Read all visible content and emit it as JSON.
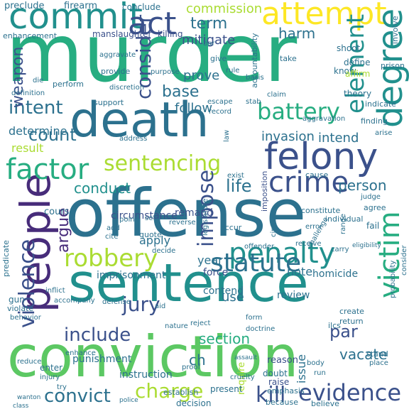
{
  "palette": {
    "background": "#ffffff",
    "colors": [
      "#440154",
      "#472c7a",
      "#3b518b",
      "#2c718e",
      "#21908d",
      "#27ad81",
      "#5cc863",
      "#aadc32",
      "#fde725"
    ]
  },
  "words": [
    {
      "text": "murder",
      "color": "#27ad81"
    },
    {
      "text": "offense",
      "color": "#2c718e"
    },
    {
      "text": "conviction",
      "color": "#5cc863"
    },
    {
      "text": "sentence",
      "color": "#21908d"
    },
    {
      "text": "death",
      "color": "#2c718e"
    },
    {
      "text": "felony",
      "color": "#3b518b"
    },
    {
      "text": "people",
      "color": "#472c7a"
    },
    {
      "text": "commit",
      "color": "#21908d"
    },
    {
      "text": "attempt",
      "color": "#fde725"
    },
    {
      "text": "act",
      "color": "#3b518b"
    },
    {
      "text": "degree",
      "color": "#21908d"
    },
    {
      "text": "penalty",
      "color": "#21908d"
    },
    {
      "text": "crime",
      "color": "#3b518b"
    },
    {
      "text": "battery",
      "color": "#27ad81"
    },
    {
      "text": "factor",
      "color": "#27ad81"
    },
    {
      "text": "sentencing",
      "color": "#aadc32"
    },
    {
      "text": "robbery",
      "color": "#aadc32"
    },
    {
      "text": "victim",
      "color": "#27ad81"
    },
    {
      "text": "statute",
      "color": "#2c718e"
    },
    {
      "text": "impose",
      "color": "#3b518b"
    },
    {
      "text": "element",
      "color": "#21908d"
    },
    {
      "text": "consider",
      "color": "#3b518b"
    },
    {
      "text": "violence",
      "color": "#3b518b"
    },
    {
      "text": "evidence",
      "color": "#3b518b"
    },
    {
      "text": "kill",
      "color": "#3b518b"
    },
    {
      "text": "charge",
      "color": "#aadc32"
    },
    {
      "text": "convict",
      "color": "#2c718e"
    },
    {
      "text": "jury",
      "color": "#3b518b"
    },
    {
      "text": "include",
      "color": "#3b518b"
    },
    {
      "text": "intent",
      "color": "#2c718e"
    },
    {
      "text": "count",
      "color": "#2c718e"
    },
    {
      "text": "term",
      "color": "#2c718e"
    },
    {
      "text": "harm",
      "color": "#2c718e"
    },
    {
      "text": "base",
      "color": "#2c718e"
    },
    {
      "text": "life",
      "color": "#2c718e"
    },
    {
      "text": "par",
      "color": "#3b518b"
    },
    {
      "text": "conduct",
      "color": "#21908d"
    },
    {
      "text": "argue",
      "color": "#472c7a"
    },
    {
      "text": "person",
      "color": "#2c718e"
    },
    {
      "text": "weapon",
      "color": "#3b518b"
    },
    {
      "text": "section",
      "color": "#27ad81"
    },
    {
      "text": "vacate",
      "color": "#2c718e"
    },
    {
      "text": "commission",
      "color": "#aadc32"
    },
    {
      "text": "mitigate",
      "color": "#3b518b"
    },
    {
      "text": "prove",
      "color": "#2c718e"
    },
    {
      "text": "follow",
      "color": "#2c718e"
    },
    {
      "text": "invasion",
      "color": "#2c718e"
    },
    {
      "text": "intend",
      "color": "#2c718e"
    },
    {
      "text": "determine",
      "color": "#2c718e"
    },
    {
      "text": "result",
      "color": "#aadc32"
    },
    {
      "text": "apply",
      "color": "#2c718e"
    },
    {
      "text": "use",
      "color": "#2c718e"
    },
    {
      "text": "year",
      "color": "#2c718e"
    },
    {
      "text": "note",
      "color": "#2c718e"
    },
    {
      "text": "issue",
      "color": "#2c718e"
    },
    {
      "text": "punishment",
      "color": "#2c718e"
    },
    {
      "text": "instruction",
      "color": "#2c718e"
    },
    {
      "text": "circumstance",
      "color": "#3b518b"
    },
    {
      "text": "imprisonment",
      "color": "#2c718e"
    },
    {
      "text": "homicide",
      "color": "#2c718e"
    },
    {
      "text": "review",
      "color": "#2c718e"
    },
    {
      "text": "contend",
      "color": "#2c718e"
    },
    {
      "text": "force",
      "color": "#3b518b"
    },
    {
      "text": "remand",
      "color": "#3b518b"
    },
    {
      "text": "course",
      "color": "#2c718e"
    },
    {
      "text": "firearm",
      "color": "#2c718e"
    },
    {
      "text": "preclude",
      "color": "#2c718e"
    },
    {
      "text": "conclude",
      "color": "#2c718e"
    },
    {
      "text": "manslaughter",
      "color": "#3b518b"
    },
    {
      "text": "killing",
      "color": "#3b518b"
    },
    {
      "text": "enhancement",
      "color": "#2c718e"
    },
    {
      "text": "give",
      "color": "#2c718e"
    },
    {
      "text": "accountability",
      "color": "#2c718e"
    },
    {
      "text": "know",
      "color": "#2c718e"
    },
    {
      "text": "shoot",
      "color": "#2c718e"
    },
    {
      "text": "take",
      "color": "#2c718e"
    },
    {
      "text": "define",
      "color": "#2c718e"
    },
    {
      "text": "affirm",
      "color": "#aadc32"
    },
    {
      "text": "theory",
      "color": "#2c718e"
    },
    {
      "text": "gun",
      "color": "#2c718e"
    },
    {
      "text": "reason",
      "color": "#3b518b"
    },
    {
      "text": "require",
      "color": "#aadc32"
    },
    {
      "text": "doubt",
      "color": "#2c718e"
    },
    {
      "text": "raise",
      "color": "#3b518b"
    },
    {
      "text": "emphasis",
      "color": "#2c718e"
    },
    {
      "text": "decision",
      "color": "#2c718e"
    },
    {
      "text": "present",
      "color": "#2c718e"
    },
    {
      "text": "establish",
      "color": "#2c718e"
    },
    {
      "text": "because",
      "color": "#2c718e"
    },
    {
      "text": "believe",
      "color": "#2c718e"
    },
    {
      "text": "enter",
      "color": "#2c718e"
    },
    {
      "text": "injury",
      "color": "#2c718e"
    },
    {
      "text": "reduce",
      "color": "#2c718e"
    },
    {
      "text": "create",
      "color": "#2c718e"
    },
    {
      "text": "return",
      "color": "#2c718e"
    },
    {
      "text": "ilcs",
      "color": "#2c718e"
    },
    {
      "text": "stand",
      "color": "#2c718e"
    },
    {
      "text": "constitute",
      "color": "#2c718e"
    },
    {
      "text": "individual",
      "color": "#2c718e"
    },
    {
      "text": "agree",
      "color": "#2c718e"
    },
    {
      "text": "judge",
      "color": "#2c718e"
    },
    {
      "text": "exist",
      "color": "#2c718e"
    },
    {
      "text": "cause",
      "color": "#2c718e"
    },
    {
      "text": "occur",
      "color": "#2c718e"
    },
    {
      "text": "reverse",
      "color": "#2c718e"
    },
    {
      "text": "point",
      "color": "#2c718e"
    },
    {
      "text": "support",
      "color": "#2c718e"
    },
    {
      "text": "provide",
      "color": "#2c718e"
    },
    {
      "text": "aggravate",
      "color": "#2c718e"
    },
    {
      "text": "perform",
      "color": "#2c718e"
    },
    {
      "text": "definition",
      "color": "#2c718e"
    },
    {
      "text": "purpose",
      "color": "#2c718e"
    },
    {
      "text": "escape",
      "color": "#2c718e"
    },
    {
      "text": "record",
      "color": "#2c718e"
    },
    {
      "text": "stab",
      "color": "#2c718e"
    },
    {
      "text": "rule",
      "color": "#2c718e"
    },
    {
      "text": "basis",
      "color": "#2c718e"
    },
    {
      "text": "claim",
      "color": "#2c718e"
    },
    {
      "text": "aggravation",
      "color": "#2c718e"
    },
    {
      "text": "finding",
      "color": "#2c718e"
    },
    {
      "text": "prison",
      "color": "#2c718e"
    },
    {
      "text": "involve",
      "color": "#2c718e"
    },
    {
      "text": "indicate",
      "color": "#2c718e"
    },
    {
      "text": "arise",
      "color": "#2c718e"
    },
    {
      "text": "predicate",
      "color": "#2c718e"
    },
    {
      "text": "violate",
      "color": "#2c718e"
    },
    {
      "text": "inflict",
      "color": "#2c718e"
    },
    {
      "text": "accompany",
      "color": "#2c718e"
    },
    {
      "text": "address",
      "color": "#2c718e"
    },
    {
      "text": "quote",
      "color": "#2c718e"
    },
    {
      "text": "add",
      "color": "#2c718e"
    },
    {
      "text": "cite",
      "color": "#2c718e"
    },
    {
      "text": "set",
      "color": "#2c718e"
    },
    {
      "text": "form",
      "color": "#2c718e"
    },
    {
      "text": "aid",
      "color": "#2c718e"
    },
    {
      "text": "defense",
      "color": "#2c718e"
    },
    {
      "text": "nature",
      "color": "#2c718e"
    },
    {
      "text": "doctrine",
      "color": "#2c718e"
    },
    {
      "text": "receive",
      "color": "#2c718e"
    },
    {
      "text": "offender",
      "color": "#2c718e"
    },
    {
      "text": "circuit",
      "color": "#2c718e"
    },
    {
      "text": "error",
      "color": "#2c718e"
    },
    {
      "text": "fail",
      "color": "#2c718e"
    },
    {
      "text": "challenge",
      "color": "#2c718e"
    },
    {
      "text": "range",
      "color": "#2c718e"
    },
    {
      "text": "carry",
      "color": "#2c718e"
    },
    {
      "text": "probability",
      "color": "#2c718e"
    },
    {
      "text": "consider",
      "color": "#2c718e"
    },
    {
      "text": "eligibility",
      "color": "#2c718e"
    },
    {
      "text": "discretion",
      "color": "#2c718e"
    },
    {
      "text": "law",
      "color": "#2c718e"
    },
    {
      "text": "imposition",
      "color": "#3b518b"
    },
    {
      "text": "legislature",
      "color": "#2c718e"
    },
    {
      "text": "try",
      "color": "#2c718e"
    },
    {
      "text": "cruelty",
      "color": "#2c718e"
    },
    {
      "text": "body",
      "color": "#2c718e"
    },
    {
      "text": "run",
      "color": "#2c718e"
    },
    {
      "text": "proof",
      "color": "#2c718e"
    },
    {
      "text": "police",
      "color": "#2c718e"
    },
    {
      "text": "assault",
      "color": "#2c718e"
    },
    {
      "text": "class",
      "color": "#2c718e"
    },
    {
      "text": "wanton",
      "color": "#2c718e"
    },
    {
      "text": "ch",
      "color": "#2c718e"
    },
    {
      "text": "reject",
      "color": "#2c718e"
    },
    {
      "text": "decide",
      "color": "#2c718e"
    },
    {
      "text": "enhance",
      "color": "#2c718e"
    },
    {
      "text": "behavior",
      "color": "#2c718e"
    },
    {
      "text": "die",
      "color": "#2c718e"
    },
    {
      "text": "bar",
      "color": "#2c718e"
    },
    {
      "text": "place",
      "color": "#2c718e"
    }
  ]
}
